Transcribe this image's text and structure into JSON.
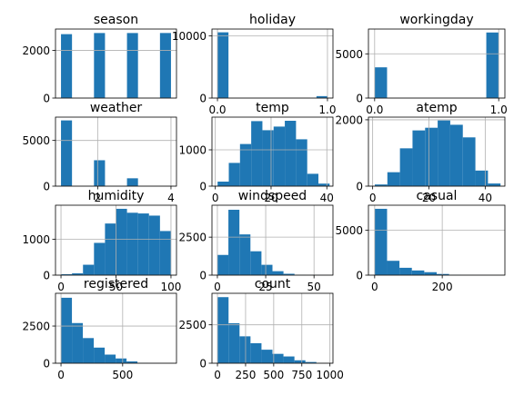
{
  "chart_data": [
    {
      "type": "bar",
      "title": "season",
      "xlim": [
        0.85,
        4.15
      ],
      "ylim": [
        0,
        2900
      ],
      "xticks": [],
      "xticklabels": [],
      "yticks": [
        0,
        2000
      ],
      "yticklabels": [
        "0",
        "2000"
      ],
      "bins": {
        "start": 1,
        "width": 0.3,
        "values": [
          2686,
          0,
          0,
          2733,
          0,
          0,
          2733,
          0,
          0,
          2734
        ]
      }
    },
    {
      "type": "bar",
      "title": "holiday",
      "xlim": [
        -0.05,
        1.05
      ],
      "ylim": [
        0,
        11100
      ],
      "xticks": [
        0,
        1
      ],
      "xticklabels": [
        "0.0",
        "1.0"
      ],
      "yticks": [
        0,
        10000
      ],
      "yticklabels": [
        "0",
        "10000"
      ],
      "bins": {
        "start": 0,
        "width": 0.1,
        "values": [
          10575,
          0,
          0,
          0,
          0,
          0,
          0,
          0,
          0,
          311
        ]
      }
    },
    {
      "type": "bar",
      "title": "workingday",
      "xlim": [
        -0.05,
        1.05
      ],
      "ylim": [
        0,
        7800
      ],
      "xticks": [
        0,
        1
      ],
      "xticklabels": [
        "0.0",
        "1.0"
      ],
      "yticks": [
        0,
        5000
      ],
      "yticklabels": [
        "0",
        "5000"
      ],
      "bins": {
        "start": 0,
        "width": 0.1,
        "values": [
          3474,
          0,
          0,
          0,
          0,
          0,
          0,
          0,
          0,
          7412
        ]
      }
    },
    {
      "type": "bar",
      "title": "weather",
      "xlim": [
        0.85,
        4.15
      ],
      "ylim": [
        0,
        7550
      ],
      "xticks": [
        2,
        4
      ],
      "xticklabels": [
        "2",
        "4"
      ],
      "yticks": [
        0,
        5000
      ],
      "yticklabels": [
        "0",
        "5000"
      ],
      "bins": {
        "start": 1,
        "width": 0.3,
        "values": [
          7192,
          0,
          0,
          2834,
          0,
          0,
          859,
          0,
          0,
          1
        ]
      }
    },
    {
      "type": "bar",
      "title": "temp",
      "xlim": [
        -1.2,
        42.2
      ],
      "ylim": [
        0,
        1900
      ],
      "xticks": [
        0,
        20,
        40
      ],
      "xticklabels": [
        "0",
        "20",
        "40"
      ],
      "yticks": [
        0,
        1000
      ],
      "yticklabels": [
        "0",
        "1000"
      ],
      "bins": {
        "start": 0.82,
        "width": 4.018,
        "values": [
          125,
          640,
          1160,
          1790,
          1540,
          1640,
          1800,
          1290,
          340,
          70
        ]
      }
    },
    {
      "type": "bar",
      "title": "atemp",
      "xlim": [
        -1.5,
        47.0
      ],
      "ylim": [
        0,
        2080
      ],
      "xticks": [
        0,
        20,
        40
      ],
      "xticklabels": [
        "0",
        "20",
        "40"
      ],
      "yticks": [
        0,
        2000
      ],
      "yticklabels": [
        "0",
        "2000"
      ],
      "bins": {
        "start": 0.76,
        "width": 4.469,
        "values": [
          50,
          420,
          1140,
          1680,
          1760,
          1980,
          1850,
          1470,
          470,
          80
        ]
      }
    },
    {
      "type": "bar",
      "title": "humidity",
      "xlim": [
        -5,
        105
      ],
      "ylim": [
        0,
        1950
      ],
      "xticks": [
        0,
        50,
        100
      ],
      "xticklabels": [
        "0",
        "50",
        "100"
      ],
      "yticks": [
        0,
        1000
      ],
      "yticklabels": [
        "0",
        "1000"
      ],
      "bins": {
        "start": 0,
        "width": 10,
        "values": [
          25,
          50,
          290,
          900,
          1440,
          1850,
          1740,
          1720,
          1660,
          1230
        ]
      }
    },
    {
      "type": "bar",
      "title": "windspeed",
      "xlim": [
        -2.8,
        59.8
      ],
      "ylim": [
        0,
        4600
      ],
      "xticks": [
        0,
        25,
        50
      ],
      "xticklabels": [
        "0",
        "25",
        "50"
      ],
      "yticks": [
        0,
        2500
      ],
      "yticklabels": [
        "0",
        "2500"
      ],
      "bins": {
        "start": 0,
        "width": 5.7,
        "values": [
          1330,
          4300,
          2680,
          1570,
          680,
          260,
          90,
          30,
          10,
          5
        ]
      }
    },
    {
      "type": "bar",
      "title": "casual",
      "xlim": [
        -18.4,
        385.4
      ],
      "ylim": [
        0,
        7800
      ],
      "xticks": [
        0,
        200
      ],
      "xticklabels": [
        "0",
        "200"
      ],
      "yticks": [
        0,
        5000
      ],
      "yticklabels": [
        "0",
        "5000"
      ],
      "bins": {
        "start": 0,
        "width": 36.7,
        "values": [
          7400,
          1600,
          820,
          520,
          330,
          130,
          40,
          25,
          10,
          5
        ]
      }
    },
    {
      "type": "bar",
      "title": "registered",
      "xlim": [
        -44.6,
        936.6
      ],
      "ylim": [
        0,
        4700
      ],
      "xticks": [
        0,
        500
      ],
      "xticklabels": [
        "0",
        "500"
      ],
      "yticks": [
        0,
        2500
      ],
      "yticklabels": [
        "0",
        "2500"
      ],
      "bins": {
        "start": 0,
        "width": 88.6,
        "values": [
          4400,
          2700,
          1690,
          1050,
          580,
          320,
          120,
          30,
          5,
          2
        ]
      }
    },
    {
      "type": "bar",
      "title": "count",
      "xlim": [
        -48.8,
        1026.8
      ],
      "ylim": [
        0,
        4550
      ],
      "xticks": [
        0,
        250,
        500,
        750,
        1000
      ],
      "xticklabels": [
        "0",
        "250",
        "500",
        "750",
        "1000"
      ],
      "yticks": [
        0,
        2500
      ],
      "yticklabels": [
        "0",
        "2500"
      ],
      "bins": {
        "start": 1,
        "width": 97.6,
        "values": [
          4300,
          2600,
          1750,
          1300,
          880,
          610,
          440,
          190,
          80,
          20
        ]
      }
    }
  ],
  "style": {
    "bar_color": "#1f77b4",
    "grid_color": "#b0b0b0",
    "axis_color": "#000000"
  }
}
